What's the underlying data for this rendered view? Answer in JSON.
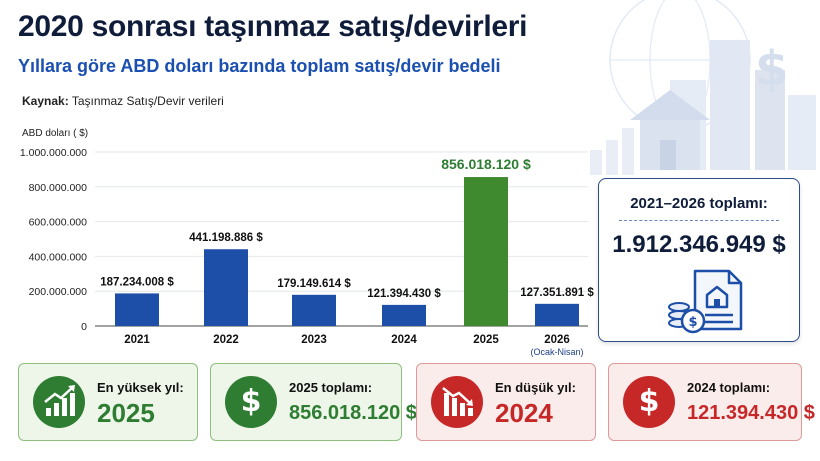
{
  "title": "2020 sonrası taşınmaz satış/devirleri",
  "subtitle": "Yıllara göre ABD doları bazında toplam satış/devir bedeli",
  "source": {
    "label": "Kaynak:",
    "text": "Taşınmaz Satış/Devir verileri"
  },
  "colors": {
    "bar_blue": "#1d4ea8",
    "bar_green": "#3f8a2e",
    "accent_green": "#2f7d32",
    "accent_red": "#c62828",
    "navy": "#0f1d3a"
  },
  "chart_data": {
    "type": "bar",
    "ylabel": "ABD doları ( $)",
    "ylim": [
      0,
      1000000000
    ],
    "yticks": [
      0,
      200000000,
      400000000,
      600000000,
      800000000,
      1000000000
    ],
    "ytick_labels": [
      "0",
      "200.000.000",
      "400.000.000",
      "600.000.000",
      "800.000.000",
      "1.000.000.000"
    ],
    "categories": [
      "2021",
      "2022",
      "2023",
      "2024",
      "2025",
      "2026"
    ],
    "category_notes": [
      "",
      "",
      "",
      "",
      "",
      "(Ocak-Nisan)"
    ],
    "values": [
      187234008,
      441198886,
      179149614,
      121394430,
      856018120,
      127351891
    ],
    "value_labels": [
      "187.234.008 $",
      "441.198.886 $",
      "179.149.614 $",
      "121.394.430 $",
      "856.018.120 $",
      "127.351.891 $"
    ],
    "highlight_index": 4,
    "grid": true
  },
  "total": {
    "label": "2021–2026 toplamı:",
    "value": "1.912.346.949 $",
    "icon": "document-house-coins-icon"
  },
  "cards": [
    {
      "label": "En yüksek yıl:",
      "value": "2025",
      "icon": "chart-up-icon",
      "tone": "green"
    },
    {
      "label": "2025 toplamı:",
      "value": "856.018.120 $",
      "icon": "dollar-icon",
      "tone": "green"
    },
    {
      "label": "En düşük yıl:",
      "value": "2024",
      "icon": "chart-down-icon",
      "tone": "red"
    },
    {
      "label": "2024 toplamı:",
      "value": "121.394.430 $",
      "icon": "dollar-icon",
      "tone": "red"
    }
  ]
}
